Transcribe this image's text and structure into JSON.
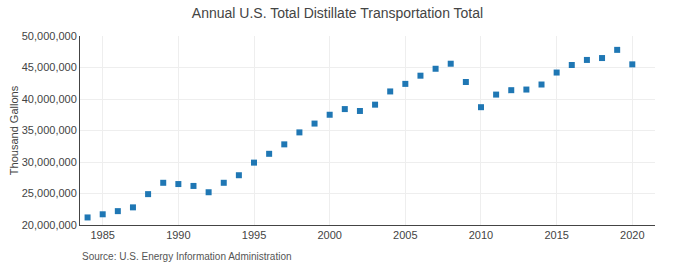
{
  "chart_data": {
    "type": "scatter",
    "title": "Annual U.S. Total Distillate Transportation Total",
    "ylabel": "Thousand Gallons",
    "annotations": [
      "Source: U.S. Energy Information Administration"
    ],
    "marker": "square",
    "grid": true,
    "x": [
      1984,
      1985,
      1986,
      1987,
      1988,
      1989,
      1990,
      1991,
      1992,
      1993,
      1994,
      1995,
      1996,
      1997,
      1998,
      1999,
      2000,
      2001,
      2002,
      2003,
      2004,
      2005,
      2006,
      2007,
      2008,
      2009,
      2010,
      2011,
      2012,
      2013,
      2014,
      2015,
      2016,
      2017,
      2018,
      2019,
      2020
    ],
    "values": [
      21200000,
      21700000,
      22200000,
      22800000,
      24900000,
      26700000,
      26500000,
      26200000,
      25200000,
      26700000,
      27900000,
      29900000,
      31300000,
      32800000,
      34700000,
      36100000,
      37500000,
      38400000,
      38100000,
      39100000,
      41200000,
      42400000,
      43700000,
      44800000,
      45600000,
      42700000,
      38700000,
      40700000,
      41400000,
      41500000,
      42300000,
      44200000,
      45400000,
      46200000,
      46500000,
      47800000,
      45500000
    ],
    "xlim": [
      1983.5,
      2021.5
    ],
    "xticks": [
      1985,
      1990,
      1995,
      2000,
      2005,
      2010,
      2015,
      2020
    ],
    "ylim": [
      20000000,
      50000000
    ],
    "yticks": [
      {
        "value": 20000000,
        "label": "20,000,000"
      },
      {
        "value": 25000000,
        "label": "25,000,000"
      },
      {
        "value": 30000000,
        "label": "30,000,000"
      },
      {
        "value": 35000000,
        "label": "35,000,000"
      },
      {
        "value": 40000000,
        "label": "40,000,000"
      },
      {
        "value": 45000000,
        "label": "45,000,000"
      },
      {
        "value": 50000000,
        "label": "50,000,000"
      }
    ]
  }
}
